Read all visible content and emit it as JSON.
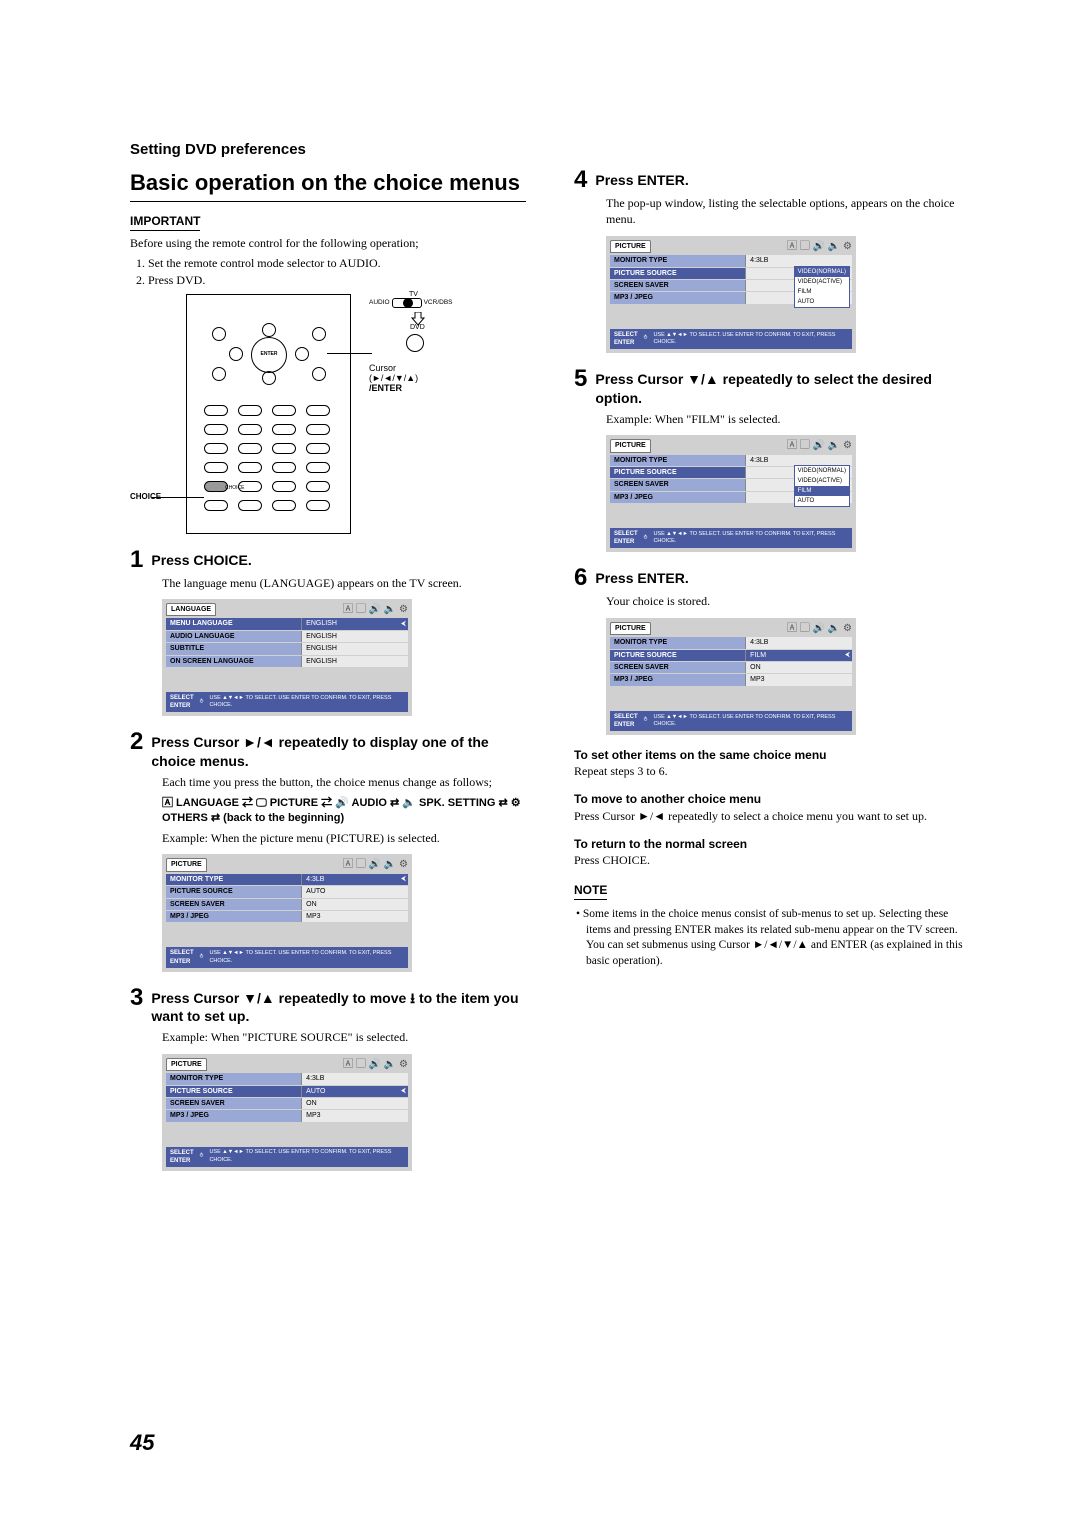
{
  "header": "Setting DVD preferences",
  "title": "Basic operation on the choice menus",
  "important_label": "IMPORTANT",
  "important_intro": "Before using the remote control for the following operation;",
  "important_items": [
    "Set the remote control mode selector to AUDIO.",
    "Press DVD."
  ],
  "remote": {
    "tv": "TV",
    "audio": "AUDIO",
    "vcr": "VCR/DBS",
    "dvd": "DVD",
    "cursor": "Cursor",
    "cursor_sym": "(►/◄/▼/▲)",
    "enter": "/ENTER",
    "choice": "CHOICE",
    "choice_sub": "CHOICE"
  },
  "steps": {
    "s1": {
      "num": "1",
      "head": "Press CHOICE.",
      "sub": "The language menu (LANGUAGE) appears on the TV screen."
    },
    "s2": {
      "num": "2",
      "head": "Press Cursor ►/◄ repeatedly to display one of the choice menus.",
      "sub": "Each time you press the button, the choice menus change as follows;",
      "cycle": "🄰 LANGUAGE ⇄ 🖵 PICTURE ⇄ 🔊 AUDIO ⇄ 🔈 SPK. SETTING ⇄ ⚙ OTHERS ⇄ (back to the beginning)",
      "example": "Example: When the picture menu (PICTURE) is selected."
    },
    "s3": {
      "num": "3",
      "head": "Press Cursor ▼/▲ repeatedly to move ⭳ to the item you want to set up.",
      "example": "Example: When \"PICTURE SOURCE\" is selected."
    },
    "s4": {
      "num": "4",
      "head": "Press ENTER.",
      "sub": "The pop-up window, listing the selectable options, appears on the choice menu."
    },
    "s5": {
      "num": "5",
      "head": "Press Cursor ▼/▲ repeatedly to select the desired option.",
      "example": "Example: When \"FILM\" is selected."
    },
    "s6": {
      "num": "6",
      "head": "Press ENTER.",
      "sub": "Your choice is stored."
    }
  },
  "menus": {
    "tabs_icons": "🄰 ▢ 🔊 🔈 ⚙",
    "lang": {
      "tab": "LANGUAGE",
      "rows": [
        {
          "k": "MENU LANGUAGE",
          "v": "ENGLISH",
          "sel": true
        },
        {
          "k": "AUDIO LANGUAGE",
          "v": "ENGLISH"
        },
        {
          "k": "SUBTITLE",
          "v": "ENGLISH"
        },
        {
          "k": "ON SCREEN LANGUAGE",
          "v": "ENGLISH"
        }
      ]
    },
    "pic1": {
      "tab": "PICTURE",
      "rows": [
        {
          "k": "MONITOR TYPE",
          "v": "4:3LB",
          "sel": true
        },
        {
          "k": "PICTURE SOURCE",
          "v": "AUTO"
        },
        {
          "k": "SCREEN SAVER",
          "v": "ON"
        },
        {
          "k": "MP3 / JPEG",
          "v": "MP3"
        }
      ]
    },
    "pic2": {
      "tab": "PICTURE",
      "rows": [
        {
          "k": "MONITOR TYPE",
          "v": "4:3LB"
        },
        {
          "k": "PICTURE SOURCE",
          "v": "AUTO",
          "sel": true
        },
        {
          "k": "SCREEN SAVER",
          "v": "ON"
        },
        {
          "k": "MP3 / JPEG",
          "v": "MP3"
        }
      ]
    },
    "pic3": {
      "tab": "PICTURE",
      "rows": [
        {
          "k": "MONITOR TYPE",
          "v": "4:3LB"
        },
        {
          "k": "PICTURE SOURCE",
          "v": "",
          "sel": true,
          "popup": [
            "VIDEO(NORMAL)",
            "VIDEO(ACTIVE)",
            "FILM",
            "AUTO"
          ],
          "popup_sel": 0
        },
        {
          "k": "SCREEN SAVER",
          "v": ""
        },
        {
          "k": "MP3 / JPEG",
          "v": ""
        }
      ]
    },
    "pic4": {
      "tab": "PICTURE",
      "rows": [
        {
          "k": "MONITOR TYPE",
          "v": "4:3LB"
        },
        {
          "k": "PICTURE SOURCE",
          "v": "",
          "sel": true,
          "popup": [
            "VIDEO(NORMAL)",
            "VIDEO(ACTIVE)",
            "FILM",
            "AUTO"
          ],
          "popup_sel": 2
        },
        {
          "k": "SCREEN SAVER",
          "v": ""
        },
        {
          "k": "MP3 / JPEG",
          "v": ""
        }
      ]
    },
    "pic5": {
      "tab": "PICTURE",
      "rows": [
        {
          "k": "MONITOR TYPE",
          "v": "4:3LB"
        },
        {
          "k": "PICTURE SOURCE",
          "v": "FILM",
          "sel": true
        },
        {
          "k": "SCREEN SAVER",
          "v": "ON"
        },
        {
          "k": "MP3 / JPEG",
          "v": "MP3"
        }
      ]
    },
    "footer": {
      "select": "SELECT",
      "enter": "ENTER",
      "text": "USE ▲▼◄► TO SELECT. USE ENTER TO CONFIRM. TO EXIT, PRESS CHOICE."
    }
  },
  "extras": {
    "set_other_head": "To set other items on the same choice menu",
    "set_other_body": "Repeat steps 3 to 6.",
    "move_head": "To move to another choice menu",
    "move_body": "Press Cursor ►/◄ repeatedly to select a choice menu you want to set up.",
    "return_head": "To return to the normal screen",
    "return_body": "Press CHOICE.",
    "note_label": "NOTE",
    "note_body": "Some items in the choice menus consist of sub-menus to set up. Selecting these items and pressing ENTER makes its related sub-menu appear on the TV screen. You can set submenus using Cursor ►/◄/▼/▲ and ENTER (as explained in this basic operation)."
  },
  "page_num": "45"
}
